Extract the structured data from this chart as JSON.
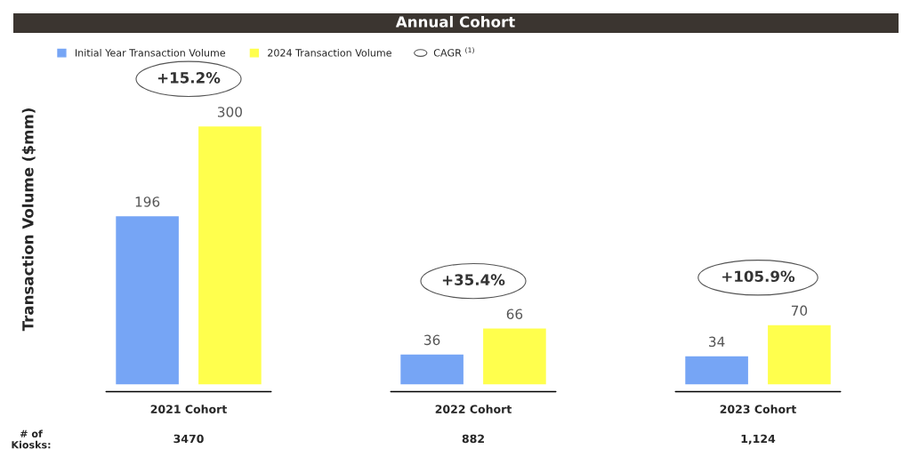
{
  "chart_data": {
    "type": "bar",
    "title": "Annual Cohort",
    "ylabel": "Transaction Volume ($mm)",
    "categories": [
      "2021 Cohort",
      "2022 Cohort",
      "2023 Cohort"
    ],
    "series": [
      {
        "name": "Initial Year Transaction Volume",
        "color": "#76a5f5",
        "values": [
          196,
          36,
          34
        ]
      },
      {
        "name": "2024 Transaction Volume",
        "color": "#ffff4d",
        "values": [
          300,
          66,
          70
        ]
      }
    ],
    "data_labels": true,
    "legend": "top left",
    "grid": false,
    "annotations": [
      "+15.2%",
      "+35.4%",
      "+105.9%",
      "CAGR $^{(1)}$",
      "# of\nKiosks:",
      "3470",
      "882",
      "1,124"
    ]
  }
}
